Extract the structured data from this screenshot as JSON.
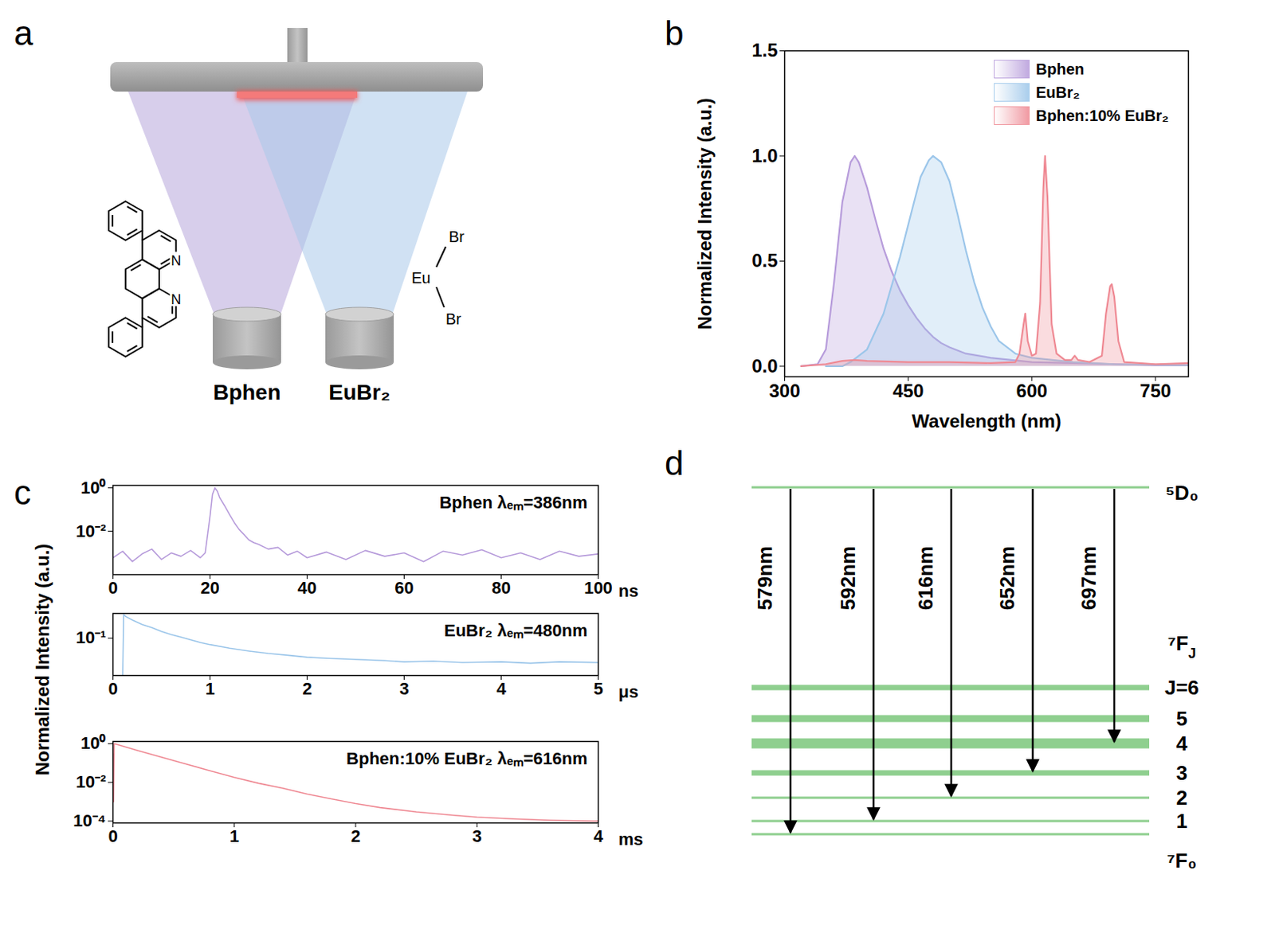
{
  "chart_data": [
    {
      "type": "area",
      "panel": "b",
      "xlabel": "Wavelength (nm)",
      "ylabel": "Normalized Intensity (a.u.)",
      "xlim": [
        300,
        790
      ],
      "xticks": [
        300,
        450,
        600,
        750
      ],
      "ylim": [
        -0.05,
        1.5
      ],
      "yticks": [
        {
          "value": 0,
          "label": "0.0"
        },
        0.5,
        {
          "value": 1,
          "label": "1.0"
        },
        1.5
      ],
      "legend": "top-right",
      "series": [
        {
          "name": "Bphen",
          "color": "#b79cdb",
          "x": [
            320,
            340,
            350,
            360,
            370,
            380,
            385,
            390,
            400,
            410,
            420,
            430,
            440,
            450,
            460,
            470,
            480,
            490,
            500,
            520,
            550,
            600,
            650,
            700,
            750,
            790
          ],
          "values": [
            0,
            0.01,
            0.08,
            0.4,
            0.78,
            0.97,
            1.0,
            0.97,
            0.85,
            0.7,
            0.56,
            0.45,
            0.36,
            0.29,
            0.23,
            0.18,
            0.14,
            0.11,
            0.09,
            0.06,
            0.04,
            0.02,
            0.015,
            0.01,
            0.005,
            0.005
          ]
        },
        {
          "name": "EuBr₂",
          "color": "#9cc6ea",
          "x": [
            350,
            370,
            380,
            400,
            420,
            440,
            455,
            465,
            475,
            480,
            490,
            500,
            510,
            520,
            530,
            540,
            550,
            560,
            580,
            600,
            650,
            700,
            790
          ],
          "values": [
            0,
            0,
            0.02,
            0.08,
            0.25,
            0.52,
            0.75,
            0.9,
            0.98,
            1.0,
            0.97,
            0.88,
            0.72,
            0.55,
            0.4,
            0.28,
            0.19,
            0.12,
            0.06,
            0.04,
            0.02,
            0.01,
            0.005
          ]
        },
        {
          "name": "Bphen:10% EuBr₂",
          "color": "#ef8a94",
          "x": [
            320,
            350,
            370,
            385,
            400,
            450,
            500,
            550,
            580,
            585,
            590,
            592,
            595,
            600,
            605,
            610,
            614,
            616,
            619,
            624,
            630,
            640,
            648,
            652,
            656,
            670,
            685,
            690,
            695,
            697,
            700,
            705,
            712,
            750,
            790
          ],
          "values": [
            0,
            0.01,
            0.025,
            0.03,
            0.025,
            0.02,
            0.02,
            0.015,
            0.02,
            0.06,
            0.2,
            0.25,
            0.12,
            0.05,
            0.06,
            0.3,
            0.85,
            1.0,
            0.8,
            0.2,
            0.06,
            0.03,
            0.03,
            0.05,
            0.03,
            0.02,
            0.05,
            0.25,
            0.38,
            0.39,
            0.33,
            0.12,
            0.02,
            0.01,
            0.015
          ]
        }
      ]
    },
    {
      "type": "line",
      "panel": "c",
      "log": "y",
      "ylabel": "Normalized Intensity (a.u.)",
      "subplots": [
        {
          "annotation": "Bphen λₑₘ=386nm",
          "xlabel": "ns",
          "color": "#b79cdb",
          "xlim": [
            0,
            100
          ],
          "xticks": [
            0,
            20,
            40,
            60,
            80,
            100
          ],
          "ylim": [
            0.0001,
            1.3
          ],
          "yticks": [
            {
              "value": 1,
              "label": "10⁰"
            },
            {
              "value": 0.01,
              "label": "10⁻²"
            }
          ],
          "x": [
            0,
            2,
            4,
            6,
            8,
            10,
            12,
            14,
            16,
            18,
            19,
            20,
            20.5,
            21,
            21.5,
            22,
            23,
            24,
            25,
            26,
            27,
            28,
            29,
            30,
            32,
            34,
            36,
            38,
            40,
            44,
            48,
            52,
            56,
            60,
            64,
            68,
            72,
            76,
            80,
            84,
            88,
            92,
            96,
            100
          ],
          "values": [
            0.0006,
            0.0012,
            0.0004,
            0.0009,
            0.0015,
            0.0005,
            0.001,
            0.0007,
            0.0013,
            0.0006,
            0.001,
            0.05,
            0.5,
            1,
            0.7,
            0.35,
            0.15,
            0.06,
            0.025,
            0.012,
            0.007,
            0.004,
            0.003,
            0.0025,
            0.0015,
            0.0018,
            0.0008,
            0.0012,
            0.0006,
            0.0011,
            0.0005,
            0.0013,
            0.0007,
            0.001,
            0.0004,
            0.0012,
            0.0008,
            0.0014,
            0.0006,
            0.001,
            0.0005,
            0.0012,
            0.0007,
            0.0009
          ]
        },
        {
          "annotation": "EuBr₂ λₑₘ=480nm",
          "xlabel": "μs",
          "color": "#9cc6ea",
          "xlim": [
            0,
            5
          ],
          "xticks": [
            0,
            1,
            2,
            3,
            4,
            5
          ],
          "ylim": [
            0.015,
            0.35
          ],
          "yticks": [
            {
              "value": 0.1,
              "label": "10⁻¹"
            }
          ],
          "x": [
            0.1,
            0.11,
            0.13,
            0.2,
            0.3,
            0.4,
            0.5,
            0.6,
            0.7,
            0.8,
            0.9,
            1.0,
            1.2,
            1.4,
            1.6,
            1.8,
            2.0,
            2.2,
            2.5,
            2.8,
            3.0,
            3.3,
            3.6,
            4.0,
            4.3,
            4.6,
            5.0
          ],
          "values": [
            0.015,
            0.33,
            0.3,
            0.25,
            0.2,
            0.17,
            0.14,
            0.12,
            0.105,
            0.092,
            0.08,
            0.072,
            0.06,
            0.052,
            0.046,
            0.042,
            0.038,
            0.036,
            0.034,
            0.032,
            0.03,
            0.031,
            0.029,
            0.03,
            0.028,
            0.03,
            0.029
          ]
        },
        {
          "annotation": "Bphen:10% EuBr₂ λₑₘ=616nm",
          "xlabel": "ms",
          "color": "#ef8a94",
          "xlim": [
            0,
            4
          ],
          "xticks": [
            0,
            1,
            2,
            3,
            4
          ],
          "ylim": [
            8e-05,
            1.3
          ],
          "yticks": [
            {
              "value": 1,
              "label": "10⁰"
            },
            {
              "value": 0.01,
              "label": "10⁻²"
            },
            {
              "value": 0.0001,
              "label": "10⁻⁴"
            }
          ],
          "x": [
            0,
            0.005,
            0.01,
            0.2,
            0.4,
            0.6,
            0.8,
            1.0,
            1.2,
            1.4,
            1.6,
            1.8,
            2.0,
            2.2,
            2.5,
            2.8,
            3.0,
            3.3,
            3.6,
            4.0
          ],
          "values": [
            0.3,
            0.001,
            1.0,
            0.45,
            0.2,
            0.09,
            0.04,
            0.018,
            0.009,
            0.005,
            0.0025,
            0.0014,
            0.0008,
            0.0005,
            0.0003,
            0.0002,
            0.00016,
            0.00013,
            0.00011,
            0.0001
          ]
        }
      ]
    }
  ],
  "diagram_a": {
    "panel": "a",
    "sources": [
      "Bphen",
      "EuBr₂"
    ],
    "bphen_atoms": [
      "N",
      "N"
    ],
    "eubr2_atoms": [
      "Br",
      "Eu",
      "Br"
    ]
  },
  "diagram_d": {
    "panel": "d",
    "upper_level": "⁵D₀",
    "manifold": {
      "text": "⁷F",
      "subscript": "J"
    },
    "lower_level": "⁷F₀",
    "j_labels": [
      "J=6",
      "5",
      "4",
      "3",
      "2",
      "1"
    ],
    "transitions": [
      {
        "label": "579nm",
        "to_J": 0
      },
      {
        "label": "592nm",
        "to_J": 1
      },
      {
        "label": "616nm",
        "to_J": 2
      },
      {
        "label": "652nm",
        "to_J": 3
      },
      {
        "label": "697nm",
        "to_J": 4
      }
    ]
  }
}
